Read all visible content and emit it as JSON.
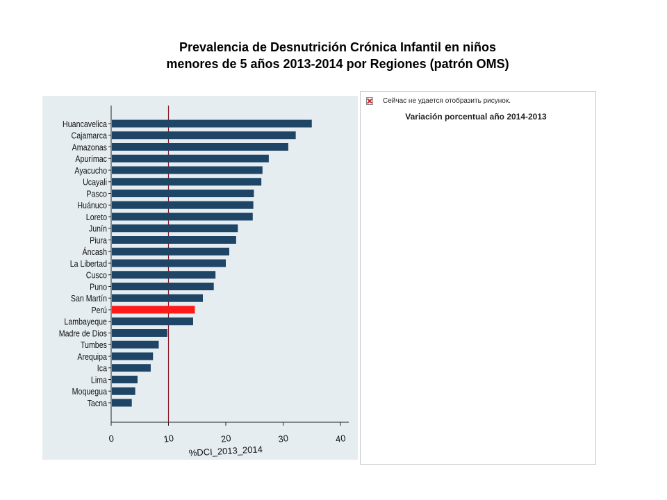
{
  "page": {
    "title_line1": "Prevalencia de Desnutrición Crónica Infantil en niños",
    "title_line2": "menores de 5 años 2013-2014 por Regiones (patrón OMS)"
  },
  "right_panel": {
    "broken_image_text": "Сейчас не удается отобразить рисунок.",
    "broken_image_icon": "broken-image-icon",
    "caption": "Variación porcentual año 2014-2013"
  },
  "chart_data": {
    "type": "bar",
    "orientation": "horizontal",
    "categories": [
      "Huancavelica",
      "Cajamarca",
      "Amazonas",
      "Apurímac",
      "Ayacucho",
      "Ucayali",
      "Pasco",
      "Huánuco",
      "Loreto",
      "Junín",
      "Piura",
      "Áncash",
      "La Libertad",
      "Cusco",
      "Puno",
      "San Martín",
      "Perú",
      "Lambayeque",
      "Madre de Dios",
      "Tumbes",
      "Arequipa",
      "Ica",
      "Lima",
      "Moquegua",
      "Tacna"
    ],
    "values": [
      35.0,
      32.2,
      30.9,
      27.5,
      26.4,
      26.2,
      24.9,
      24.8,
      24.7,
      22.1,
      21.8,
      20.6,
      20.0,
      18.2,
      17.9,
      16.0,
      14.6,
      14.3,
      9.8,
      8.3,
      7.3,
      6.9,
      4.6,
      4.2,
      3.6
    ],
    "highlight_category": "Perú",
    "bar_color": "#1e4466",
    "highlight_color": "#ff1a1a",
    "reference_line_x": 10,
    "reference_line_color": "#8b1a2b",
    "xlim": [
      0,
      40
    ],
    "x_ticks": [
      "0",
      "10",
      "20",
      "30",
      "40"
    ],
    "xlabel": "%DCI_2013_2014",
    "ylabel": "",
    "grid": false,
    "background": "#e6edf1"
  }
}
